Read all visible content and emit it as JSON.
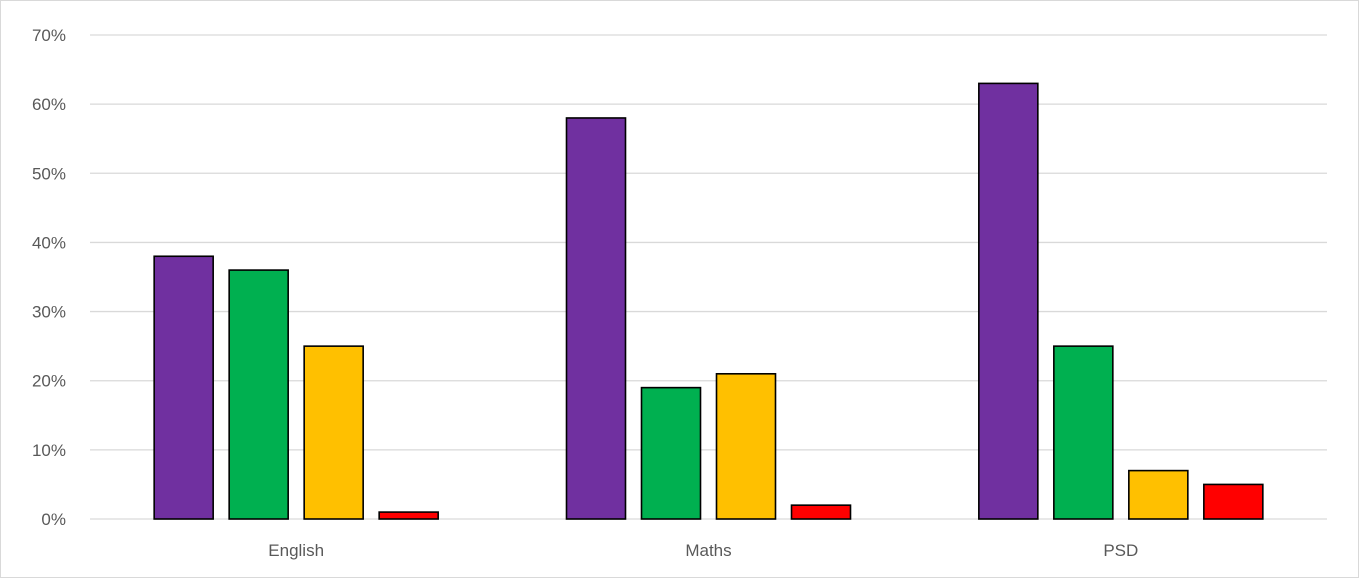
{
  "chart_data": {
    "type": "bar",
    "categories": [
      "English",
      "Maths",
      "PSD"
    ],
    "series": [
      {
        "values": [
          38,
          58,
          63
        ],
        "color": "#7030a0"
      },
      {
        "values": [
          36,
          19,
          25
        ],
        "color": "#00b050"
      },
      {
        "values": [
          25,
          21,
          7
        ],
        "color": "#ffc000"
      },
      {
        "values": [
          1,
          2,
          5
        ],
        "color": "#ff0000"
      }
    ],
    "ylim": [
      0,
      70
    ],
    "yticks": [
      0,
      10,
      20,
      30,
      40,
      50,
      60,
      70
    ],
    "ytick_labels": [
      "0%",
      "10%",
      "20%",
      "30%",
      "40%",
      "50%",
      "60%",
      "70%"
    ],
    "title": "",
    "xlabel": "",
    "ylabel": "",
    "grid": true,
    "legend": "none"
  }
}
